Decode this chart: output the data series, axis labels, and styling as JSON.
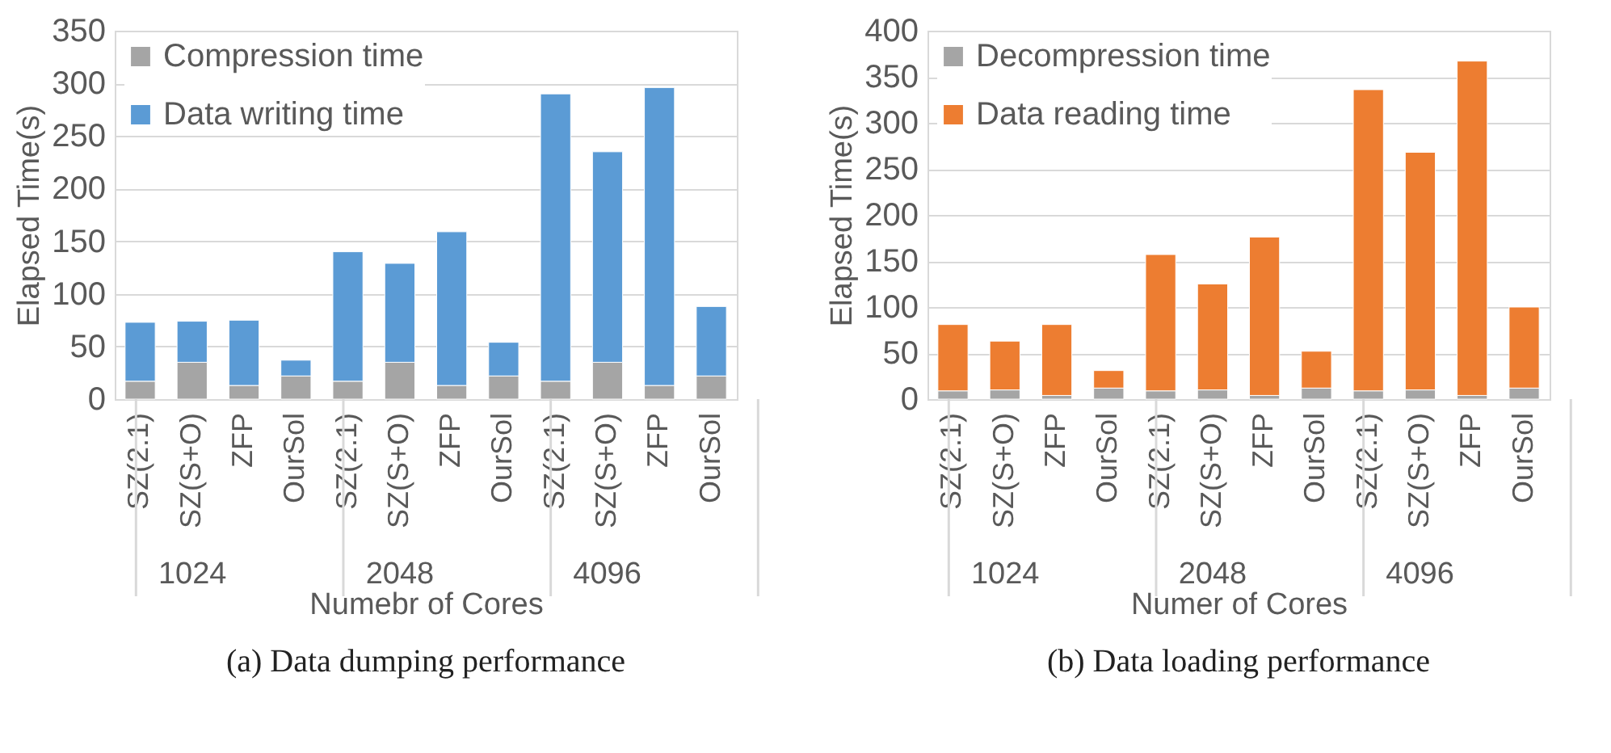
{
  "chart_data": [
    {
      "type": "bar",
      "stacked": true,
      "title": "(a) Data dumping performance",
      "xlabel": "Numebr of Cores",
      "ylabel": "Elapsed Time(s)",
      "categories": [
        "SZ(2.1)",
        "SZ(S+O)",
        "ZFP",
        "OurSol",
        "SZ(2.1)",
        "SZ(S+O)",
        "ZFP",
        "OurSol",
        "SZ(2.1)",
        "SZ(S+O)",
        "ZFP",
        "OurSol"
      ],
      "series": [
        {
          "name": "Compression time",
          "color": "#a5a5a5",
          "values": [
            17,
            35,
            13,
            22,
            17,
            35,
            13,
            22,
            17,
            35,
            13,
            22
          ]
        },
        {
          "name": "Data writing time",
          "color": "#5b9bd5",
          "values": [
            56,
            39,
            62,
            15,
            123,
            94,
            146,
            32,
            273,
            200,
            283,
            66
          ]
        }
      ],
      "annotations": [
        "1024",
        "2048",
        "4096"
      ],
      "ylim": [
        0,
        350
      ],
      "yticks": [
        0,
        50,
        100,
        150,
        200,
        250,
        300,
        350
      ],
      "grid": "y",
      "legend": "top left"
    },
    {
      "type": "bar",
      "stacked": true,
      "title": "(b) Data loading performance",
      "xlabel": "Numer of Cores",
      "ylabel": "Elapsed Time(s)",
      "categories": [
        "SZ(2.1)",
        "SZ(S+O)",
        "ZFP",
        "OurSol",
        "SZ(2.1)",
        "SZ(S+O)",
        "ZFP",
        "OurSol",
        "SZ(2.1)",
        "SZ(S+O)",
        "ZFP",
        "OurSol"
      ],
      "series": [
        {
          "name": "Decompression time",
          "color": "#a5a5a5",
          "values": [
            9,
            10,
            4,
            12,
            9,
            10,
            4,
            12,
            9,
            10,
            4,
            12
          ]
        },
        {
          "name": "Data reading time",
          "color": "#ed7d31",
          "values": [
            72,
            53,
            77,
            19,
            148,
            115,
            172,
            40,
            327,
            258,
            363,
            88
          ]
        }
      ],
      "annotations": [
        "1024",
        "2048",
        "4096"
      ],
      "ylim": [
        0,
        400
      ],
      "yticks": [
        0,
        50,
        100,
        150,
        200,
        250,
        300,
        350,
        400
      ],
      "grid": "y",
      "legend": "top left"
    }
  ]
}
